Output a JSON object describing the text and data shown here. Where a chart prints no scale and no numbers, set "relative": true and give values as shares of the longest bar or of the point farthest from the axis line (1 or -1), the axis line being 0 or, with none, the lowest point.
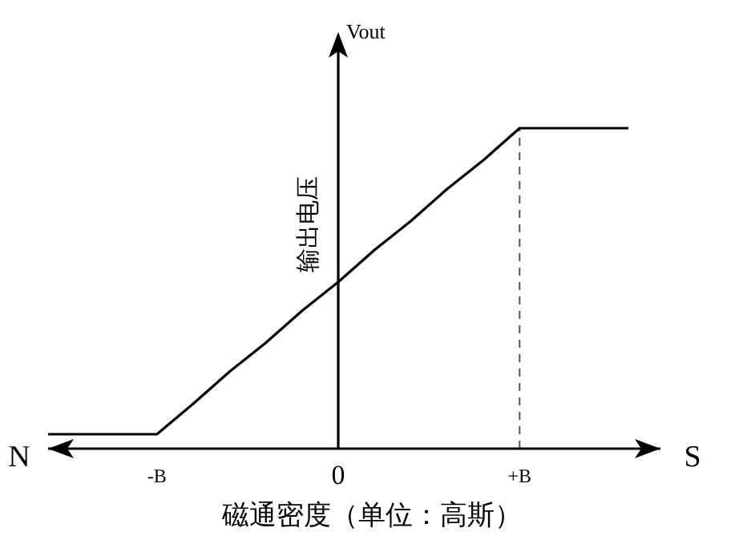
{
  "chart_data": {
    "type": "line",
    "relative": true,
    "xlabel": "磁通密度（单位：高斯）",
    "ylabel": "输出电压",
    "annotations": [
      "N",
      "S",
      "Vout"
    ],
    "categories": [
      null,
      null,
      null,
      "-B",
      null,
      null,
      null,
      null,
      "0",
      null,
      null,
      null,
      null,
      "+B",
      null,
      null,
      null
    ],
    "series": [
      {
        "color": "#000000",
        "values": [
          0.045,
          0.045,
          0.045,
          0.045,
          0.14,
          0.24,
          0.33,
          0.43,
          0.52,
          0.62,
          0.71,
          0.81,
          0.9,
          1,
          1,
          1,
          1
        ]
      }
    ],
    "ref_lines": [
      {
        "axis": "x",
        "value": "+B",
        "line_style": "dashed",
        "color": "#555555"
      }
    ],
    "grid": false,
    "legend": false,
    "marker": "none",
    "line_style": "solid"
  }
}
